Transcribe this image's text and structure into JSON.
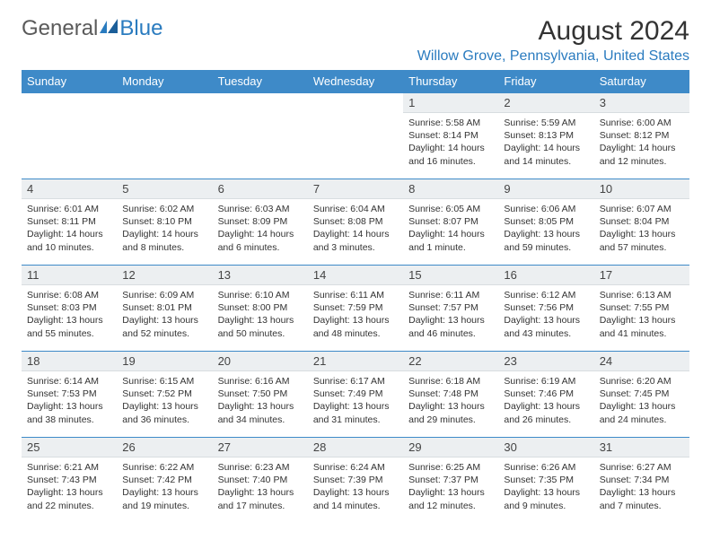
{
  "brand": {
    "part1": "General",
    "part2": "Blue"
  },
  "title": "August 2024",
  "location": "Willow Grove, Pennsylvania, United States",
  "colors": {
    "header_bg": "#3e8ac8",
    "header_fg": "#ffffff",
    "daynum_bg": "#eceff1",
    "border": "#3e8ac8",
    "brand_blue": "#2a7bbf",
    "text": "#333333"
  },
  "day_headers": [
    "Sunday",
    "Monday",
    "Tuesday",
    "Wednesday",
    "Thursday",
    "Friday",
    "Saturday"
  ],
  "weeks": [
    [
      null,
      null,
      null,
      null,
      {
        "n": "1",
        "sr": "5:58 AM",
        "ss": "8:14 PM",
        "dl": "14 hours and 16 minutes."
      },
      {
        "n": "2",
        "sr": "5:59 AM",
        "ss": "8:13 PM",
        "dl": "14 hours and 14 minutes."
      },
      {
        "n": "3",
        "sr": "6:00 AM",
        "ss": "8:12 PM",
        "dl": "14 hours and 12 minutes."
      }
    ],
    [
      {
        "n": "4",
        "sr": "6:01 AM",
        "ss": "8:11 PM",
        "dl": "14 hours and 10 minutes."
      },
      {
        "n": "5",
        "sr": "6:02 AM",
        "ss": "8:10 PM",
        "dl": "14 hours and 8 minutes."
      },
      {
        "n": "6",
        "sr": "6:03 AM",
        "ss": "8:09 PM",
        "dl": "14 hours and 6 minutes."
      },
      {
        "n": "7",
        "sr": "6:04 AM",
        "ss": "8:08 PM",
        "dl": "14 hours and 3 minutes."
      },
      {
        "n": "8",
        "sr": "6:05 AM",
        "ss": "8:07 PM",
        "dl": "14 hours and 1 minute."
      },
      {
        "n": "9",
        "sr": "6:06 AM",
        "ss": "8:05 PM",
        "dl": "13 hours and 59 minutes."
      },
      {
        "n": "10",
        "sr": "6:07 AM",
        "ss": "8:04 PM",
        "dl": "13 hours and 57 minutes."
      }
    ],
    [
      {
        "n": "11",
        "sr": "6:08 AM",
        "ss": "8:03 PM",
        "dl": "13 hours and 55 minutes."
      },
      {
        "n": "12",
        "sr": "6:09 AM",
        "ss": "8:01 PM",
        "dl": "13 hours and 52 minutes."
      },
      {
        "n": "13",
        "sr": "6:10 AM",
        "ss": "8:00 PM",
        "dl": "13 hours and 50 minutes."
      },
      {
        "n": "14",
        "sr": "6:11 AM",
        "ss": "7:59 PM",
        "dl": "13 hours and 48 minutes."
      },
      {
        "n": "15",
        "sr": "6:11 AM",
        "ss": "7:57 PM",
        "dl": "13 hours and 46 minutes."
      },
      {
        "n": "16",
        "sr": "6:12 AM",
        "ss": "7:56 PM",
        "dl": "13 hours and 43 minutes."
      },
      {
        "n": "17",
        "sr": "6:13 AM",
        "ss": "7:55 PM",
        "dl": "13 hours and 41 minutes."
      }
    ],
    [
      {
        "n": "18",
        "sr": "6:14 AM",
        "ss": "7:53 PM",
        "dl": "13 hours and 38 minutes."
      },
      {
        "n": "19",
        "sr": "6:15 AM",
        "ss": "7:52 PM",
        "dl": "13 hours and 36 minutes."
      },
      {
        "n": "20",
        "sr": "6:16 AM",
        "ss": "7:50 PM",
        "dl": "13 hours and 34 minutes."
      },
      {
        "n": "21",
        "sr": "6:17 AM",
        "ss": "7:49 PM",
        "dl": "13 hours and 31 minutes."
      },
      {
        "n": "22",
        "sr": "6:18 AM",
        "ss": "7:48 PM",
        "dl": "13 hours and 29 minutes."
      },
      {
        "n": "23",
        "sr": "6:19 AM",
        "ss": "7:46 PM",
        "dl": "13 hours and 26 minutes."
      },
      {
        "n": "24",
        "sr": "6:20 AM",
        "ss": "7:45 PM",
        "dl": "13 hours and 24 minutes."
      }
    ],
    [
      {
        "n": "25",
        "sr": "6:21 AM",
        "ss": "7:43 PM",
        "dl": "13 hours and 22 minutes."
      },
      {
        "n": "26",
        "sr": "6:22 AM",
        "ss": "7:42 PM",
        "dl": "13 hours and 19 minutes."
      },
      {
        "n": "27",
        "sr": "6:23 AM",
        "ss": "7:40 PM",
        "dl": "13 hours and 17 minutes."
      },
      {
        "n": "28",
        "sr": "6:24 AM",
        "ss": "7:39 PM",
        "dl": "13 hours and 14 minutes."
      },
      {
        "n": "29",
        "sr": "6:25 AM",
        "ss": "7:37 PM",
        "dl": "13 hours and 12 minutes."
      },
      {
        "n": "30",
        "sr": "6:26 AM",
        "ss": "7:35 PM",
        "dl": "13 hours and 9 minutes."
      },
      {
        "n": "31",
        "sr": "6:27 AM",
        "ss": "7:34 PM",
        "dl": "13 hours and 7 minutes."
      }
    ]
  ],
  "labels": {
    "sunrise": "Sunrise:",
    "sunset": "Sunset:",
    "daylight": "Daylight:"
  }
}
